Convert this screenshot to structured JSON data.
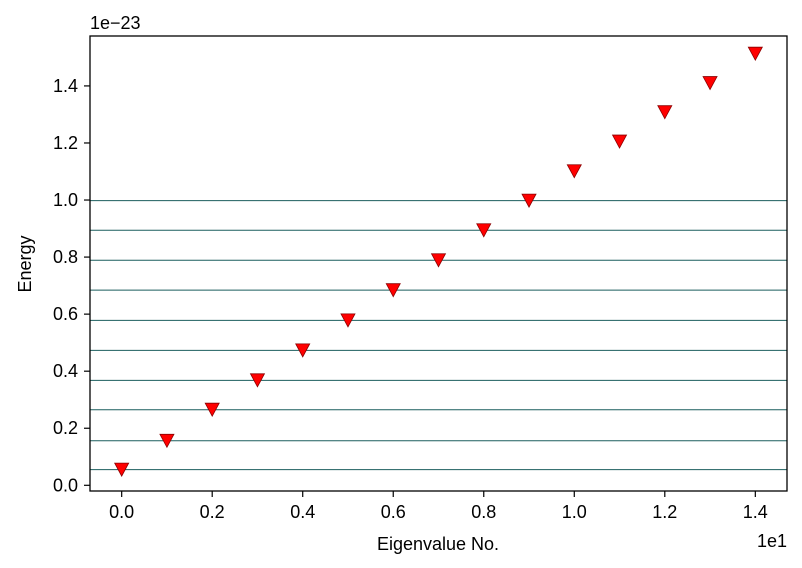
{
  "chart_data": {
    "type": "scatter",
    "title": "",
    "xlabel": "Eigenvalue No.",
    "ylabel": "Energy",
    "x_offset_text": "1e1",
    "y_offset_text": "1e−23",
    "xlim": [
      -0.07,
      1.47
    ],
    "ylim": [
      -0.02,
      1.575
    ],
    "xticks": [
      0.0,
      0.2,
      0.4,
      0.6,
      0.8,
      1.0,
      1.2,
      1.4
    ],
    "xtick_labels": [
      "0.0",
      "0.2",
      "0.4",
      "0.6",
      "0.8",
      "1.0",
      "1.2",
      "1.4"
    ],
    "yticks": [
      0.0,
      0.2,
      0.4,
      0.6,
      0.8,
      1.0,
      1.2,
      1.4
    ],
    "ytick_labels": [
      "0.0",
      "0.2",
      "0.4",
      "0.6",
      "0.8",
      "1.0",
      "1.2",
      "1.4"
    ],
    "series": [
      {
        "marker": "triangle-down",
        "color": "#ff0000",
        "x": [
          0.0,
          0.1,
          0.2,
          0.3,
          0.4,
          0.5,
          0.6,
          0.7,
          0.8,
          0.9,
          1.0,
          1.1,
          1.2,
          1.3,
          1.4
        ],
        "y": [
          0.055,
          0.156,
          0.265,
          0.368,
          0.473,
          0.578,
          0.684,
          0.789,
          0.894,
          0.998,
          1.101,
          1.205,
          1.308,
          1.41,
          1.513
        ]
      }
    ],
    "hlines": {
      "color": "#1b5e5e",
      "y": [
        0.055,
        0.156,
        0.265,
        0.368,
        0.473,
        0.578,
        0.684,
        0.789,
        0.894,
        0.998
      ]
    },
    "grid": false,
    "legend": "none"
  }
}
